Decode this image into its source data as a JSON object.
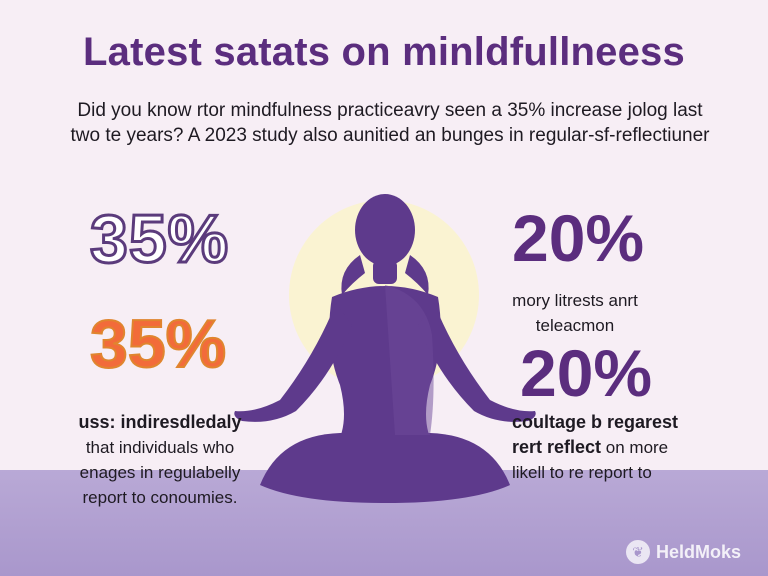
{
  "title": "Latest satats on minldfullneess",
  "intro": {
    "line1": "Did you know rtor mindfulness practiceavry seen a 35% increase jolog last",
    "line2": "two te years? A 2023 study also aunitied an bunges in regular-sf-reflectiuner"
  },
  "stats": {
    "left_top": "35%",
    "left_bottom": "35%",
    "right_top": "20%",
    "right_bottom": "20%"
  },
  "right_caption": {
    "line1": "mory litrests anrt",
    "line2": "teleacmon"
  },
  "left_text": {
    "line1": "uss: indiresdledaly",
    "line2": "that individuals who",
    "line3": "enages in regulabelly",
    "line4": "report to conoumies."
  },
  "right_text": {
    "line1": "coultage b regarest",
    "line2_bold": "rert reflect",
    "line2_rest": " on more",
    "line3": "likell to re report to"
  },
  "brand": {
    "name": "HeldMoks",
    "icon": "leaf-icon"
  },
  "colors": {
    "background": "#f7eef5",
    "accent": "#5b2d7e",
    "orange": "#f26b3a",
    "ground": "#a997cc",
    "sun": "#faf3d2",
    "figure": "#5e3a8c"
  }
}
